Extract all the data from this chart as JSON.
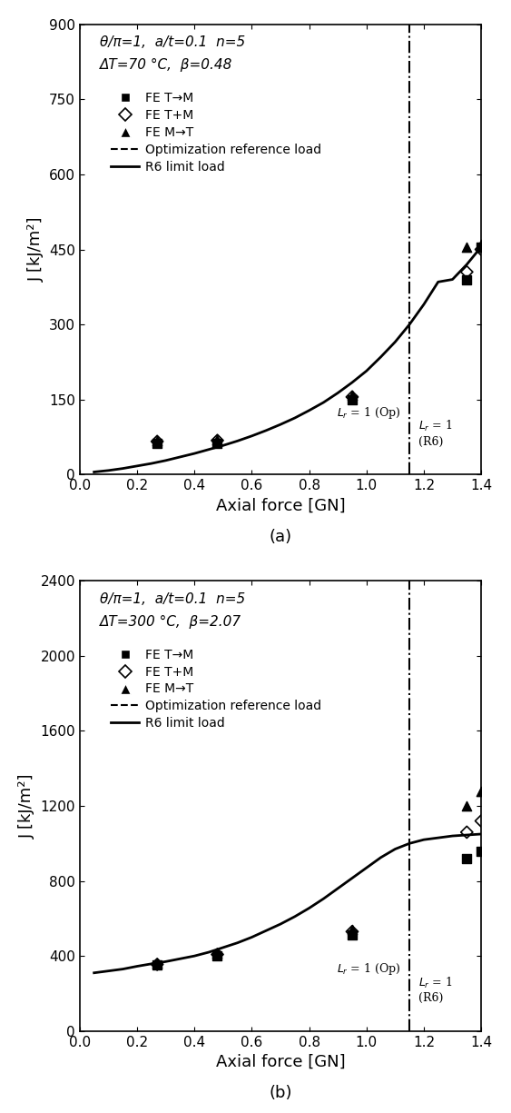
{
  "panel_a": {
    "title_line1": "θ/π=1,  a/t=0.1  n=5",
    "title_line2": "ΔT=70 °C,  β=0.48",
    "ylabel": "J [kJ/m²]",
    "xlabel": "Axial force [GN]",
    "xlim": [
      0.0,
      1.4
    ],
    "ylim": [
      0,
      900
    ],
    "yticks": [
      0,
      150,
      300,
      450,
      600,
      750,
      900
    ],
    "xticks": [
      0.0,
      0.2,
      0.4,
      0.6,
      0.8,
      1.0,
      1.2,
      1.4
    ],
    "vline_x": 1.15,
    "vline_label_left": "$L_r$ = 1 (Op)",
    "vline_label_right": "$L_r$ = 1\n(R6)",
    "curve_x": [
      0.05,
      0.1,
      0.15,
      0.2,
      0.25,
      0.3,
      0.35,
      0.4,
      0.45,
      0.5,
      0.55,
      0.6,
      0.65,
      0.7,
      0.75,
      0.8,
      0.85,
      0.9,
      0.95,
      1.0,
      1.05,
      1.1,
      1.15,
      1.2,
      1.25,
      1.3,
      1.35,
      1.4
    ],
    "curve_y": [
      5,
      8,
      12,
      17,
      22,
      28,
      35,
      42,
      50,
      58,
      67,
      77,
      88,
      100,
      113,
      128,
      144,
      163,
      184,
      207,
      235,
      265,
      300,
      340,
      385,
      390,
      420,
      455
    ],
    "fe_TtoM_x": [
      0.27,
      0.48,
      0.95,
      1.35,
      1.4
    ],
    "fe_TtoM_y": [
      62,
      62,
      150,
      390,
      455
    ],
    "fe_TplusM_x": [
      0.27,
      0.48,
      0.95,
      1.35,
      1.4
    ],
    "fe_TplusM_y": [
      66,
      68,
      155,
      405,
      450
    ],
    "fe_MtoT_x": [
      0.27,
      0.48,
      0.95,
      1.35,
      1.4
    ],
    "fe_MtoT_y": [
      68,
      70,
      158,
      455,
      460
    ]
  },
  "panel_b": {
    "title_line1": "θ/π=1,  a/t=0.1  n=5",
    "title_line2": "ΔT=300 °C,  β=2.07",
    "ylabel": "J [kJ/m²]",
    "xlabel": "Axial force [GN]",
    "xlim": [
      0.0,
      1.4
    ],
    "ylim": [
      0,
      2400
    ],
    "yticks": [
      0,
      400,
      800,
      1200,
      1600,
      2000,
      2400
    ],
    "xticks": [
      0.0,
      0.2,
      0.4,
      0.6,
      0.8,
      1.0,
      1.2,
      1.4
    ],
    "vline_x": 1.15,
    "vline_label_left": "$L_r$ = 1 (Op)",
    "vline_label_right": "$L_r$ = 1\n(R6)",
    "curve_x": [
      0.05,
      0.1,
      0.15,
      0.2,
      0.25,
      0.3,
      0.35,
      0.4,
      0.45,
      0.5,
      0.55,
      0.6,
      0.65,
      0.7,
      0.75,
      0.8,
      0.85,
      0.9,
      0.95,
      1.0,
      1.05,
      1.1,
      1.15,
      1.2,
      1.25,
      1.3,
      1.35,
      1.4
    ],
    "curve_y": [
      310,
      320,
      330,
      345,
      358,
      370,
      385,
      400,
      420,
      445,
      470,
      500,
      535,
      570,
      610,
      655,
      705,
      760,
      815,
      870,
      925,
      970,
      1000,
      1020,
      1030,
      1040,
      1045,
      1050
    ],
    "fe_TtoM_x": [
      0.27,
      0.48,
      0.95,
      1.35,
      1.4
    ],
    "fe_TtoM_y": [
      350,
      400,
      510,
      920,
      960
    ],
    "fe_TplusM_x": [
      0.27,
      0.48,
      0.95,
      1.35,
      1.4
    ],
    "fe_TplusM_y": [
      355,
      408,
      530,
      1060,
      1120
    ],
    "fe_MtoT_x": [
      0.27,
      0.48,
      0.95,
      1.35,
      1.4
    ],
    "fe_MtoT_y": [
      360,
      415,
      540,
      1200,
      1280
    ]
  },
  "legend_entries": [
    "FE T→M",
    "FE T+M",
    "FE M→T",
    "Optimization reference load",
    "R6 limit load"
  ],
  "subfig_labels": [
    "(a)",
    "(b)"
  ],
  "background_color": "#ffffff",
  "line_color": "#000000"
}
